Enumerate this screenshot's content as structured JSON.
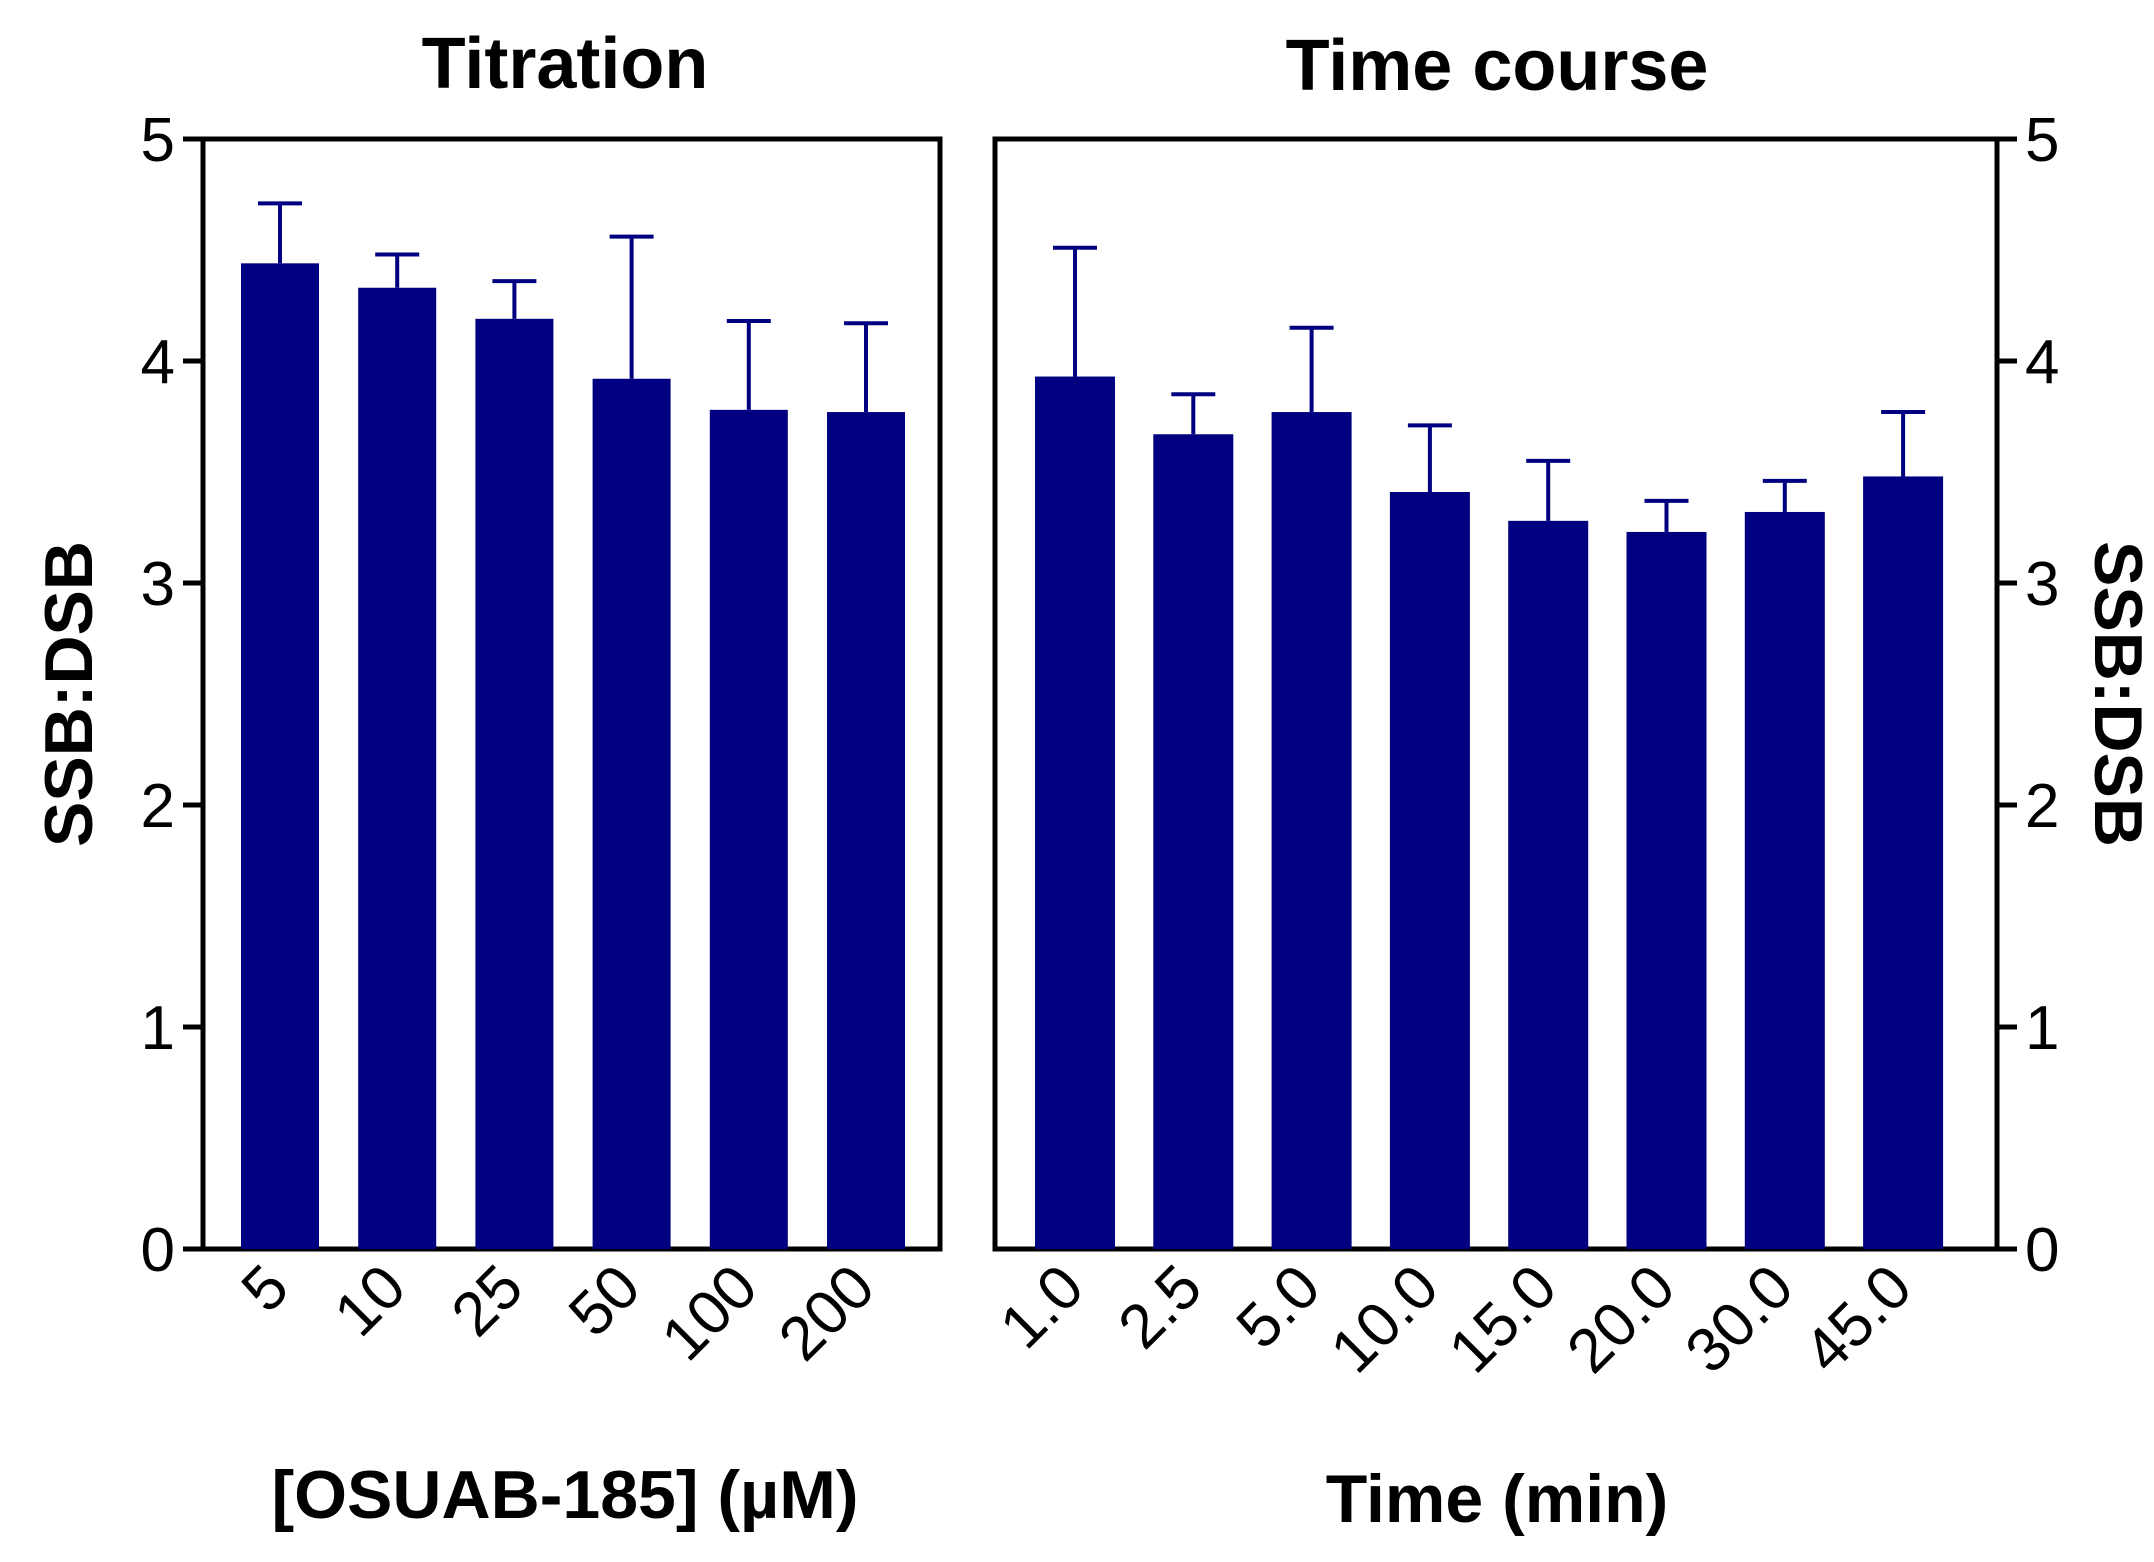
{
  "chart_data": [
    {
      "type": "bar",
      "title": "Titration",
      "xlabel": "[OSUAB-185] (µM)",
      "ylabel": "SSB:DSB",
      "ylim": [
        0,
        5
      ],
      "yticks": [
        "0",
        "1",
        "2",
        "3",
        "4",
        "5"
      ],
      "y_axis_side": "left",
      "categories": [
        "5",
        "10",
        "25",
        "50",
        "100",
        "200"
      ],
      "values": [
        4.44,
        4.33,
        4.19,
        3.92,
        3.78,
        3.77
      ],
      "errors": [
        0.27,
        0.15,
        0.17,
        0.64,
        0.4,
        0.4
      ],
      "bar_color": "#000080",
      "grid": false
    },
    {
      "type": "bar",
      "title": "Time course",
      "xlabel": "Time (min)",
      "ylabel": "SSB:DSB",
      "ylim": [
        0,
        5
      ],
      "yticks": [
        "0",
        "1",
        "2",
        "3",
        "4",
        "5"
      ],
      "y_axis_side": "right",
      "categories": [
        "1.0",
        "2.5",
        "5.0",
        "10.0",
        "15.0",
        "20.0",
        "30.0",
        "45.0"
      ],
      "values": [
        3.93,
        3.67,
        3.77,
        3.41,
        3.28,
        3.23,
        3.32,
        3.48
      ],
      "errors": [
        0.58,
        0.18,
        0.38,
        0.3,
        0.27,
        0.14,
        0.14,
        0.29
      ],
      "bar_color": "#000080",
      "grid": false
    }
  ]
}
